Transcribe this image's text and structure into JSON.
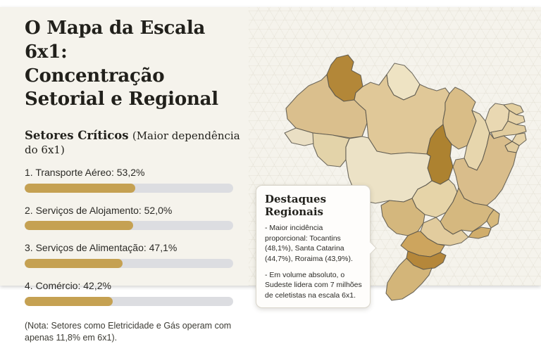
{
  "page": {
    "page_bg": "#ffffff",
    "card_bg": "#f5f3ec"
  },
  "header": {
    "title_line1": "O Mapa da Escala 6x1:",
    "title_line2": "Concentração Setorial e Regional"
  },
  "sectors": {
    "heading": "Setores Críticos",
    "heading_note": "(Maior dependência do 6x1)",
    "items": [
      {
        "label": "1. Transporte Aéreo: 53,2%",
        "value": 53.2
      },
      {
        "label": "2. Serviços de Alojamento: 52,0%",
        "value": 52.0
      },
      {
        "label": "3. Serviços de Alimentação: 47,1%",
        "value": 47.1
      },
      {
        "label": "4. Comércio: 42,2%",
        "value": 42.2
      }
    ],
    "note": "(Nota: Setores como Eletricidade e Gás operam com apenas 11,8% em 6x1).",
    "bar_fill_color": "#c5a152",
    "bar_track_color": "#dcdde1"
  },
  "callout": {
    "title": "Destaques Regionais",
    "point_1": "- Maior incidência proporcional: Tocantins (48,1%), Santa Catarina (44,7%), Roraima (43,9%).",
    "point_2": "- Em volume absoluto, o Sudeste lidera com 7 milhões de celetistas na escala 6x1."
  },
  "map": {
    "label": "Mapa do Brasil — concentração da escala 6x1 por estado",
    "highlight_color": "#ad8232",
    "fills": {
      "RR": "#b38738",
      "AP": "#eee3c3",
      "AM": "#dabf8d",
      "PA": "#e0c898",
      "MA": "#d9bd87",
      "PI": "#e7d6ad",
      "CE": "#e9d8b2",
      "RN": "#e3cfa0",
      "PB": "#e6d3a8",
      "PE": "#e1cc9e",
      "AL": "#e6d3a8",
      "SE": "#e1cc9e",
      "TO": "#ad8230",
      "BA": "#d9bd8b",
      "AC": "#eadfc4",
      "RO": "#e3d3a9",
      "MT": "#ece2c6",
      "GO": "#e6d4a8",
      "MS": "#d4b77d",
      "MG": "#d5b87f",
      "ES": "#d7b97c",
      "RJ": "#d0ad6b",
      "SP": "#e2cc9e",
      "PR": "#cda55e",
      "SC": "#b5873a",
      "RS": "#d3b579"
    }
  },
  "chart_data": [
    {
      "type": "bar",
      "orientation": "horizontal",
      "title": "Setores Críticos (Maior dependência do 6x1)",
      "categories": [
        "Transporte Aéreo",
        "Serviços de Alojamento",
        "Serviços de Alimentação",
        "Comércio"
      ],
      "values": [
        53.2,
        52.0,
        47.1,
        42.2
      ],
      "value_labels": [
        "53,2%",
        "52,0%",
        "47,1%",
        "42,2%"
      ],
      "unit": "%",
      "xlim": [
        0,
        100
      ],
      "grid": false,
      "legend": false,
      "bar_color": "#c5a152",
      "track_color": "#dcdde1",
      "note": "Setores como Eletricidade e Gás operam com apenas 11,8% em 6x1"
    },
    {
      "type": "heatmap",
      "subtype": "choropleth-map-brazil",
      "title": "Destaques Regionais",
      "highlighted_states": [
        {
          "state": "Tocantins",
          "value": 48.1
        },
        {
          "state": "Santa Catarina",
          "value": 44.7
        },
        {
          "state": "Roraima",
          "value": 43.9
        }
      ],
      "absolute_leader": {
        "region": "Sudeste",
        "workers": "7 milhões de celetistas na escala 6x1"
      }
    }
  ]
}
